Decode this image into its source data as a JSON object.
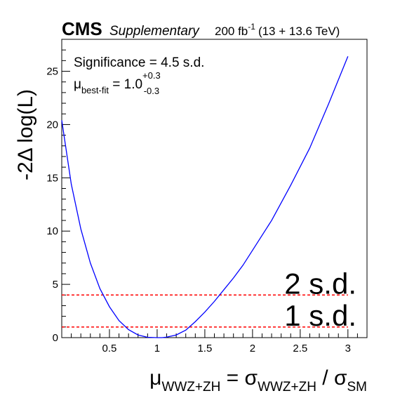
{
  "header": {
    "cms": "CMS",
    "supplementary": "Supplementary",
    "lumi_value": "200 fb",
    "lumi_exp": "-1",
    "energy": "(13 + 13.6 TeV)"
  },
  "annotations": {
    "significance": "Significance = 4.5 s.d.",
    "mu_symbol": "μ",
    "mu_sub": "best-fit",
    "mu_eq": " = 1.0",
    "mu_up": "+0.3",
    "mu_down": "-0.3"
  },
  "axis_labels": {
    "y": "-2Δ log(L)",
    "x_mu": "μ",
    "x_mu_sub": "WWZ+ZH",
    "x_eq": " = σ",
    "x_sigma_sub": "WWZ+ZH",
    "x_slash": " / σ",
    "x_sm_sub": "SM"
  },
  "chart_data": {
    "type": "line",
    "xlim": [
      0,
      3.2
    ],
    "ylim": [
      0,
      28
    ],
    "x_ticks": [
      {
        "value": 0.5,
        "label": "0.5"
      },
      {
        "value": 1,
        "label": "1"
      },
      {
        "value": 1.5,
        "label": "1.5"
      },
      {
        "value": 2,
        "label": "2"
      },
      {
        "value": 2.5,
        "label": "2.5"
      },
      {
        "value": 3,
        "label": "3"
      }
    ],
    "y_ticks": [
      {
        "value": 0,
        "label": "0"
      },
      {
        "value": 5,
        "label": "5"
      },
      {
        "value": 10,
        "label": "10"
      },
      {
        "value": 15,
        "label": "15"
      },
      {
        "value": 20,
        "label": "20"
      },
      {
        "value": 25,
        "label": "25"
      }
    ],
    "series": [
      {
        "color": "#0000ff",
        "x": [
          0.0,
          0.1,
          0.2,
          0.3,
          0.4,
          0.5,
          0.6,
          0.7,
          0.8,
          0.9,
          1.0,
          1.05,
          1.1,
          1.2,
          1.3,
          1.4,
          1.5,
          1.6,
          1.7,
          1.8,
          1.9,
          2.0,
          2.2,
          2.4,
          2.6,
          2.8,
          3.0
        ],
        "y": [
          20.4,
          14.4,
          10.2,
          7.0,
          4.6,
          2.9,
          1.6,
          0.75,
          0.25,
          0.03,
          0.0,
          0.0,
          0.05,
          0.25,
          0.7,
          1.5,
          2.4,
          3.4,
          4.5,
          5.6,
          6.8,
          8.2,
          11.0,
          14.3,
          17.8,
          22.0,
          26.4
        ]
      }
    ],
    "reference_lines": [
      {
        "y": 1,
        "label": "1 s.d.",
        "color": "#ff0000"
      },
      {
        "y": 4,
        "label": "2 s.d.",
        "color": "#ff0000"
      }
    ]
  }
}
